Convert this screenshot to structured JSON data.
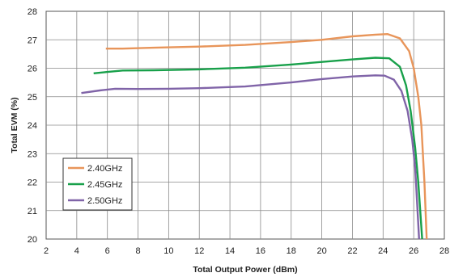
{
  "chart_data": {
    "type": "line",
    "title": "",
    "xlabel": "Total Output Power (dBm)",
    "ylabel": "Total EVM (%)",
    "xlim": [
      2,
      28
    ],
    "ylim": [
      20,
      28
    ],
    "x_ticks": [
      "2",
      "4",
      "6",
      "8",
      "10",
      "12",
      "14",
      "16",
      "18",
      "20",
      "22",
      "24",
      "26",
      "28"
    ],
    "y_ticks": [
      "20",
      "21",
      "22",
      "23",
      "24",
      "25",
      "26",
      "27",
      "28"
    ],
    "grid": true,
    "legend_position": "bottom-left",
    "series": [
      {
        "name": "2.40GHz",
        "color": "#e8955a",
        "points": [
          [
            5.9,
            26.69
          ],
          [
            7.0,
            26.69
          ],
          [
            9.0,
            26.72
          ],
          [
            12.0,
            26.76
          ],
          [
            15.0,
            26.82
          ],
          [
            18.0,
            26.92
          ],
          [
            20.0,
            27.0
          ],
          [
            22.0,
            27.12
          ],
          [
            23.5,
            27.18
          ],
          [
            24.3,
            27.2
          ],
          [
            25.1,
            27.05
          ],
          [
            25.7,
            26.6
          ],
          [
            26.0,
            26.0
          ],
          [
            26.3,
            25.0
          ],
          [
            26.5,
            24.0
          ],
          [
            26.7,
            22.0
          ],
          [
            26.85,
            20.0
          ]
        ]
      },
      {
        "name": "2.45GHz",
        "color": "#18a04a",
        "points": [
          [
            5.1,
            25.82
          ],
          [
            6.0,
            25.87
          ],
          [
            7.0,
            25.92
          ],
          [
            9.0,
            25.93
          ],
          [
            12.0,
            25.96
          ],
          [
            15.0,
            26.02
          ],
          [
            18.0,
            26.13
          ],
          [
            20.0,
            26.22
          ],
          [
            22.0,
            26.31
          ],
          [
            23.5,
            26.37
          ],
          [
            24.4,
            26.35
          ],
          [
            25.1,
            26.05
          ],
          [
            25.5,
            25.4
          ],
          [
            25.8,
            24.5
          ],
          [
            26.1,
            23.2
          ],
          [
            26.3,
            22.0
          ],
          [
            26.55,
            20.0
          ]
        ]
      },
      {
        "name": "2.50GHz",
        "color": "#8064a8",
        "points": [
          [
            4.3,
            25.13
          ],
          [
            5.5,
            25.22
          ],
          [
            6.5,
            25.28
          ],
          [
            8.0,
            25.27
          ],
          [
            10.0,
            25.28
          ],
          [
            12.0,
            25.3
          ],
          [
            15.0,
            25.36
          ],
          [
            18.0,
            25.5
          ],
          [
            20.0,
            25.62
          ],
          [
            22.0,
            25.71
          ],
          [
            23.5,
            25.75
          ],
          [
            24.1,
            25.74
          ],
          [
            24.7,
            25.6
          ],
          [
            25.2,
            25.2
          ],
          [
            25.6,
            24.5
          ],
          [
            25.9,
            23.5
          ],
          [
            26.1,
            22.5
          ],
          [
            26.35,
            20.0
          ]
        ]
      }
    ]
  }
}
